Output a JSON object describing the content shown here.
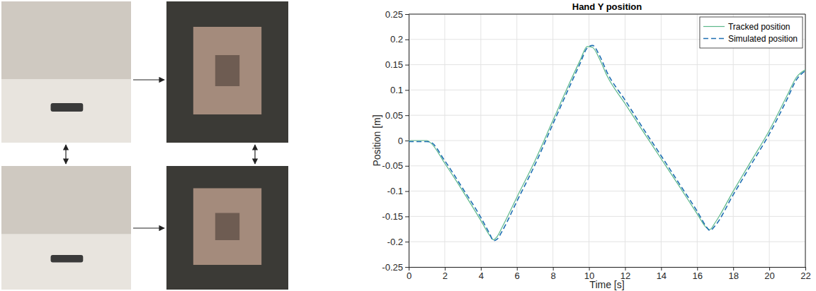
{
  "chart_data": {
    "type": "line",
    "title": "Hand Y position",
    "x_label": "Time [s]",
    "y_label": "Position [m]",
    "x": [
      0,
      1,
      1.2,
      2,
      3,
      4,
      4.5,
      4.7,
      4.9,
      5.2,
      6,
      7,
      8,
      9,
      9.5,
      9.9,
      10.2,
      10.6,
      11,
      12,
      13,
      14,
      15,
      16,
      16.5,
      16.7,
      17,
      18,
      19,
      20,
      21,
      21.5,
      22
    ],
    "series": [
      {
        "name": "Tracked position",
        "color": "#5cb88a",
        "line_style": "solid",
        "values": [
          0,
          0,
          -0.004,
          -0.045,
          -0.1,
          -0.158,
          -0.188,
          -0.196,
          -0.19,
          -0.17,
          -0.112,
          -0.04,
          0.04,
          0.12,
          0.158,
          0.186,
          0.184,
          0.16,
          0.128,
          0.073,
          0.018,
          -0.036,
          -0.09,
          -0.145,
          -0.172,
          -0.176,
          -0.162,
          -0.1,
          -0.04,
          0.02,
          0.09,
          0.125,
          0.14
        ]
      },
      {
        "name": "Simulated position",
        "color": "#1f6fb2",
        "line_style": "dashed",
        "values": [
          -0.002,
          -0.002,
          -0.003,
          -0.04,
          -0.095,
          -0.152,
          -0.185,
          -0.198,
          -0.195,
          -0.178,
          -0.12,
          -0.048,
          0.033,
          0.113,
          0.152,
          0.183,
          0.188,
          0.167,
          0.135,
          0.08,
          0.024,
          -0.03,
          -0.085,
          -0.14,
          -0.17,
          -0.178,
          -0.168,
          -0.107,
          -0.047,
          0.013,
          0.083,
          0.12,
          0.138
        ]
      }
    ],
    "xlim": [
      0,
      22
    ],
    "xticks": [
      0,
      2,
      4,
      6,
      8,
      10,
      12,
      14,
      16,
      18,
      20,
      22
    ],
    "ylim": [
      -0.25,
      0.25
    ],
    "yticks": [
      -0.25,
      -0.2,
      -0.15,
      -0.1,
      -0.05,
      0,
      0.05,
      0.1,
      0.15,
      0.2,
      0.25
    ],
    "grid": true,
    "legend": "upper right"
  }
}
